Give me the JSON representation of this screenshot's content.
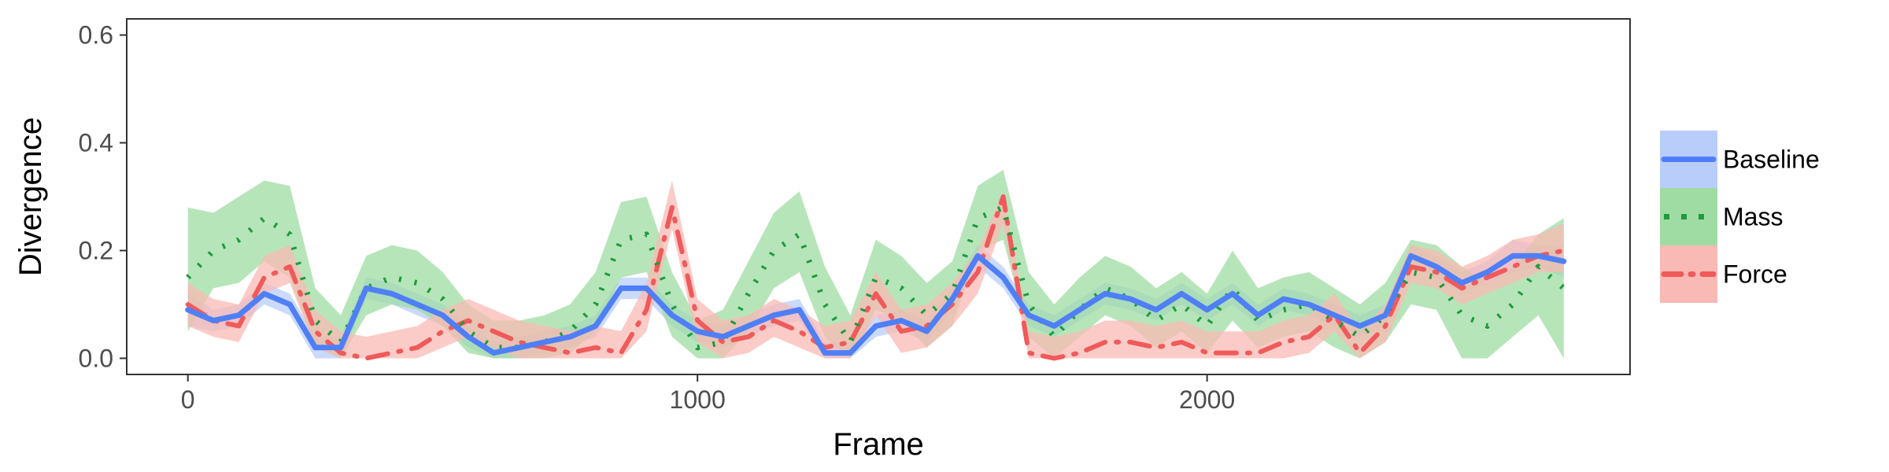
{
  "chart_data": {
    "type": "line",
    "xlabel": "Frame",
    "ylabel": "Divergence",
    "xlim": [
      -120,
      2830
    ],
    "ylim": [
      -0.03,
      0.63
    ],
    "x_ticks": [
      0,
      1000,
      2000
    ],
    "x_tick_labels": [
      "0",
      "1000",
      "2000"
    ],
    "y_ticks": [
      0.0,
      0.2,
      0.4,
      0.6
    ],
    "y_tick_labels": [
      "0.0",
      "0.2",
      "0.4",
      "0.6"
    ],
    "grid": false,
    "legend_position": "right",
    "x": [
      0,
      50,
      100,
      150,
      200,
      250,
      300,
      350,
      400,
      450,
      500,
      550,
      600,
      650,
      700,
      750,
      800,
      850,
      900,
      950,
      1000,
      1050,
      1100,
      1150,
      1200,
      1250,
      1300,
      1350,
      1400,
      1450,
      1500,
      1550,
      1600,
      1650,
      1700,
      1750,
      1800,
      1850,
      1900,
      1950,
      2000,
      2050,
      2100,
      2150,
      2200,
      2250,
      2300,
      2350,
      2400,
      2450,
      2500,
      2550,
      2600,
      2650,
      2700
    ],
    "series": [
      {
        "name": "Baseline",
        "color": "#4f7ff7",
        "band_color": "#b9cdfa",
        "line": "solid",
        "values": [
          0.09,
          0.07,
          0.08,
          0.12,
          0.1,
          0.02,
          0.02,
          0.13,
          0.12,
          0.1,
          0.08,
          0.04,
          0.01,
          0.02,
          0.03,
          0.04,
          0.06,
          0.13,
          0.13,
          0.08,
          0.05,
          0.04,
          0.06,
          0.08,
          0.09,
          0.01,
          0.01,
          0.06,
          0.07,
          0.05,
          0.11,
          0.19,
          0.15,
          0.08,
          0.06,
          0.09,
          0.12,
          0.11,
          0.09,
          0.12,
          0.09,
          0.12,
          0.08,
          0.11,
          0.1,
          0.08,
          0.06,
          0.08,
          0.19,
          0.17,
          0.14,
          0.16,
          0.19,
          0.19,
          0.18
        ],
        "lower": [
          0.06,
          0.05,
          0.06,
          0.1,
          0.08,
          0.0,
          0.0,
          0.11,
          0.1,
          0.08,
          0.06,
          0.02,
          0.0,
          0.0,
          0.01,
          0.02,
          0.04,
          0.11,
          0.11,
          0.06,
          0.03,
          0.02,
          0.04,
          0.06,
          0.07,
          0.0,
          0.0,
          0.04,
          0.05,
          0.03,
          0.09,
          0.17,
          0.13,
          0.06,
          0.04,
          0.07,
          0.1,
          0.09,
          0.07,
          0.1,
          0.07,
          0.1,
          0.06,
          0.09,
          0.08,
          0.06,
          0.04,
          0.06,
          0.17,
          0.15,
          0.12,
          0.14,
          0.16,
          0.17,
          0.15
        ],
        "upper": [
          0.12,
          0.09,
          0.1,
          0.14,
          0.12,
          0.04,
          0.04,
          0.15,
          0.14,
          0.12,
          0.1,
          0.06,
          0.03,
          0.04,
          0.05,
          0.06,
          0.08,
          0.15,
          0.15,
          0.1,
          0.07,
          0.06,
          0.08,
          0.1,
          0.11,
          0.03,
          0.03,
          0.08,
          0.09,
          0.07,
          0.13,
          0.21,
          0.17,
          0.1,
          0.08,
          0.11,
          0.14,
          0.13,
          0.11,
          0.14,
          0.11,
          0.14,
          0.1,
          0.13,
          0.12,
          0.1,
          0.08,
          0.1,
          0.21,
          0.19,
          0.16,
          0.18,
          0.22,
          0.21,
          0.21
        ]
      },
      {
        "name": "Mass",
        "color": "#1e9b3c",
        "band_color": "#9fdca3",
        "line": "dotted",
        "values": [
          0.15,
          0.2,
          0.22,
          0.26,
          0.23,
          0.07,
          0.03,
          0.13,
          0.15,
          0.14,
          0.11,
          0.05,
          0.02,
          0.02,
          0.03,
          0.05,
          0.1,
          0.22,
          0.23,
          0.1,
          0.02,
          0.03,
          0.12,
          0.2,
          0.23,
          0.1,
          0.03,
          0.15,
          0.13,
          0.08,
          0.12,
          0.26,
          0.28,
          0.1,
          0.04,
          0.09,
          0.13,
          0.11,
          0.07,
          0.1,
          0.06,
          0.13,
          0.07,
          0.09,
          0.1,
          0.07,
          0.04,
          0.08,
          0.16,
          0.15,
          0.08,
          0.06,
          0.1,
          0.17,
          0.13
        ],
        "lower": [
          0.05,
          0.13,
          0.14,
          0.18,
          0.15,
          0.02,
          0.0,
          0.08,
          0.1,
          0.09,
          0.06,
          0.01,
          0.0,
          0.0,
          0.0,
          0.01,
          0.05,
          0.15,
          0.16,
          0.04,
          0.0,
          0.0,
          0.05,
          0.13,
          0.16,
          0.04,
          0.0,
          0.09,
          0.07,
          0.02,
          0.06,
          0.2,
          0.22,
          0.04,
          0.0,
          0.04,
          0.08,
          0.06,
          0.02,
          0.05,
          0.01,
          0.07,
          0.02,
          0.04,
          0.05,
          0.02,
          0.0,
          0.03,
          0.1,
          0.09,
          0.0,
          0.0,
          0.04,
          0.08,
          0.0
        ],
        "upper": [
          0.28,
          0.27,
          0.3,
          0.33,
          0.32,
          0.13,
          0.08,
          0.19,
          0.21,
          0.2,
          0.16,
          0.1,
          0.07,
          0.07,
          0.08,
          0.1,
          0.16,
          0.29,
          0.3,
          0.16,
          0.07,
          0.09,
          0.18,
          0.27,
          0.31,
          0.17,
          0.08,
          0.22,
          0.19,
          0.14,
          0.18,
          0.32,
          0.35,
          0.16,
          0.1,
          0.15,
          0.19,
          0.17,
          0.13,
          0.16,
          0.12,
          0.2,
          0.13,
          0.15,
          0.16,
          0.13,
          0.1,
          0.14,
          0.22,
          0.21,
          0.17,
          0.14,
          0.17,
          0.23,
          0.26
        ]
      },
      {
        "name": "Force",
        "color": "#f05a5a",
        "band_color": "#f9b9b4",
        "line": "dashdot",
        "values": [
          0.1,
          0.07,
          0.06,
          0.15,
          0.17,
          0.05,
          0.01,
          0.0,
          0.01,
          0.02,
          0.05,
          0.07,
          0.05,
          0.03,
          0.02,
          0.01,
          0.02,
          0.01,
          0.09,
          0.28,
          0.07,
          0.03,
          0.04,
          0.07,
          0.05,
          0.02,
          0.03,
          0.12,
          0.05,
          0.06,
          0.1,
          0.16,
          0.3,
          0.01,
          0.0,
          0.01,
          0.03,
          0.03,
          0.02,
          0.03,
          0.01,
          0.01,
          0.01,
          0.03,
          0.04,
          0.08,
          0.01,
          0.06,
          0.17,
          0.16,
          0.13,
          0.15,
          0.17,
          0.19,
          0.2
        ],
        "lower": [
          0.06,
          0.04,
          0.03,
          0.12,
          0.14,
          0.02,
          0.0,
          0.0,
          0.0,
          0.0,
          0.02,
          0.04,
          0.02,
          0.0,
          0.0,
          0.0,
          0.0,
          0.0,
          0.05,
          0.24,
          0.03,
          0.0,
          0.01,
          0.04,
          0.02,
          0.0,
          0.0,
          0.08,
          0.01,
          0.02,
          0.06,
          0.12,
          0.25,
          0.0,
          0.0,
          0.0,
          0.0,
          0.0,
          0.0,
          0.0,
          0.0,
          0.0,
          0.0,
          0.0,
          0.01,
          0.05,
          0.0,
          0.03,
          0.14,
          0.13,
          0.1,
          0.12,
          0.14,
          0.16,
          0.16
        ],
        "upper": [
          0.14,
          0.11,
          0.1,
          0.19,
          0.21,
          0.09,
          0.05,
          0.04,
          0.05,
          0.06,
          0.09,
          0.11,
          0.09,
          0.07,
          0.06,
          0.05,
          0.06,
          0.05,
          0.14,
          0.33,
          0.11,
          0.07,
          0.08,
          0.11,
          0.09,
          0.06,
          0.07,
          0.16,
          0.09,
          0.1,
          0.14,
          0.2,
          0.31,
          0.05,
          0.04,
          0.05,
          0.07,
          0.07,
          0.06,
          0.07,
          0.05,
          0.05,
          0.05,
          0.07,
          0.08,
          0.12,
          0.05,
          0.1,
          0.21,
          0.2,
          0.17,
          0.19,
          0.22,
          0.23,
          0.25
        ]
      }
    ]
  }
}
